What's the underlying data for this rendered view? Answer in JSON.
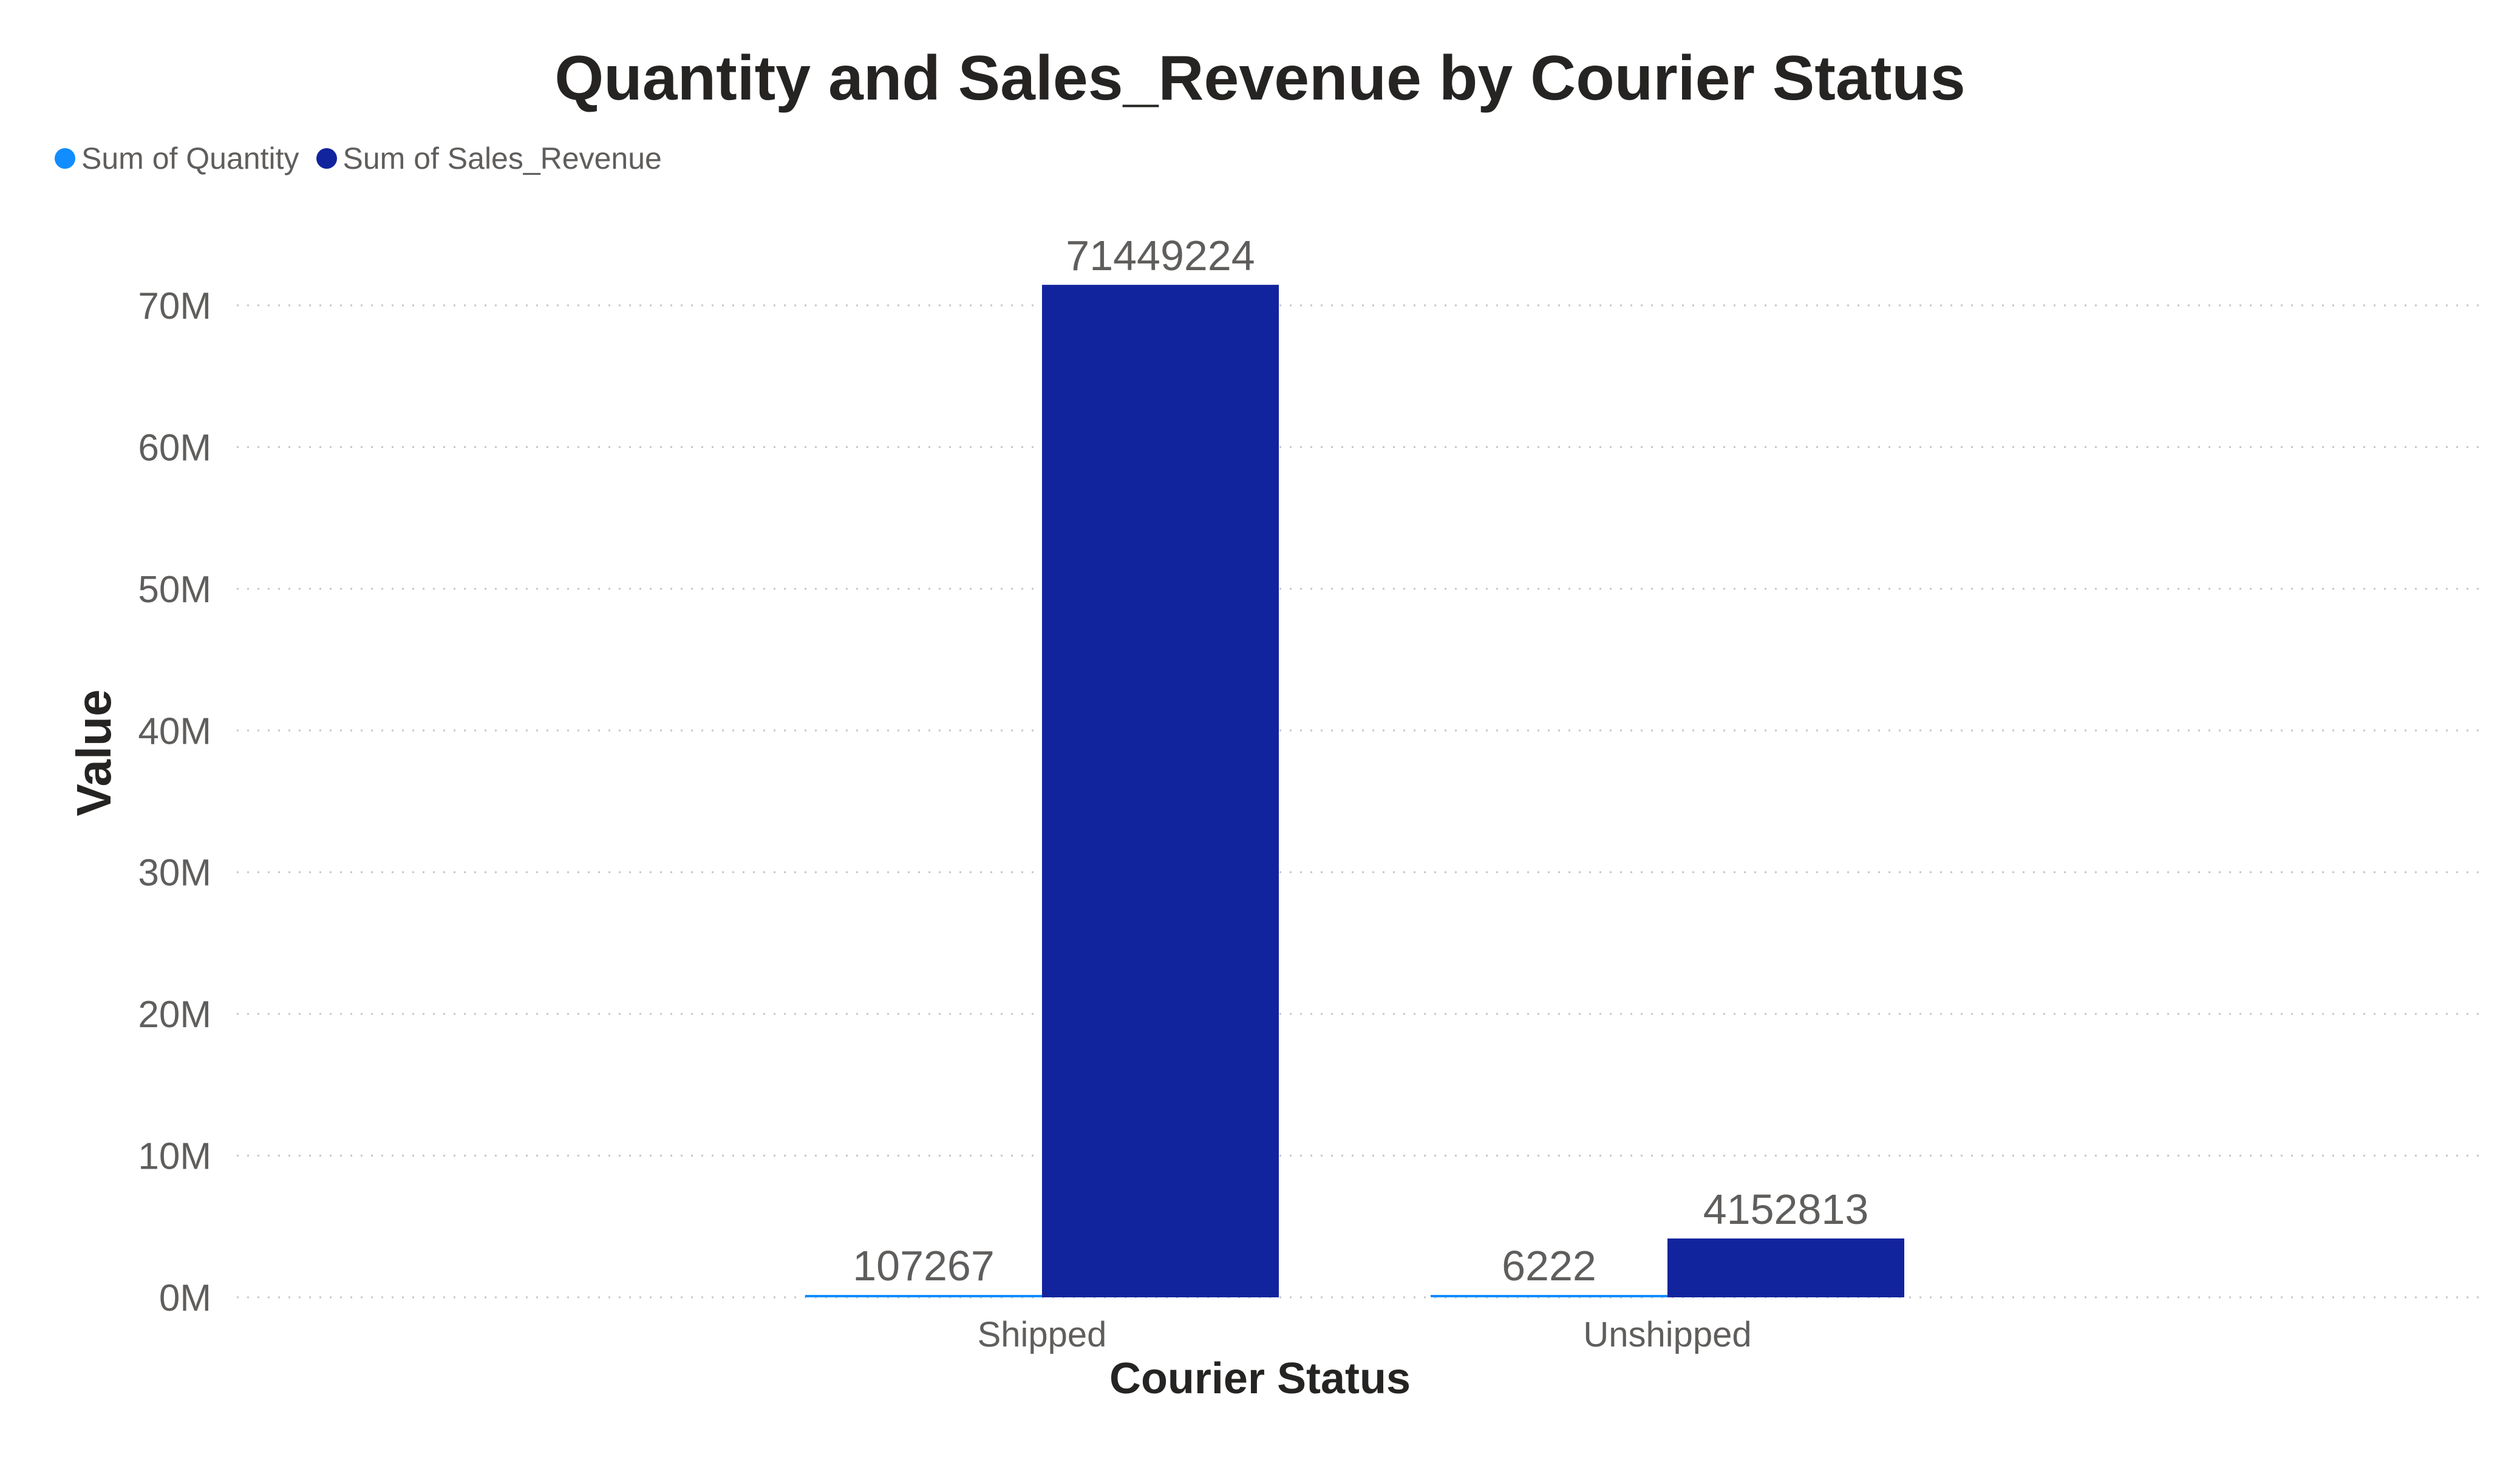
{
  "chart_data": {
    "type": "bar",
    "title": "Quantity and Sales_Revenue by Courier Status",
    "xlabel": "Courier Status",
    "ylabel": "Value",
    "categories": [
      "Shipped",
      "Unshipped"
    ],
    "series": [
      {
        "name": "Sum of Quantity",
        "color": "#118dff",
        "values": [
          107267,
          6222
        ],
        "labels": [
          "107267",
          "6222"
        ]
      },
      {
        "name": "Sum of Sales_Revenue",
        "color": "#12239e",
        "values": [
          71449224,
          4152813
        ],
        "labels": [
          "71449224",
          "4152813"
        ]
      }
    ],
    "ylim": [
      0,
      76000000
    ],
    "yticks": [
      0,
      10000000,
      20000000,
      30000000,
      40000000,
      50000000,
      60000000,
      70000000
    ],
    "ytick_labels": [
      "0M",
      "10M",
      "20M",
      "30M",
      "40M",
      "50M",
      "60M",
      "70M"
    ],
    "grid": true,
    "legend_position": "top-left"
  }
}
